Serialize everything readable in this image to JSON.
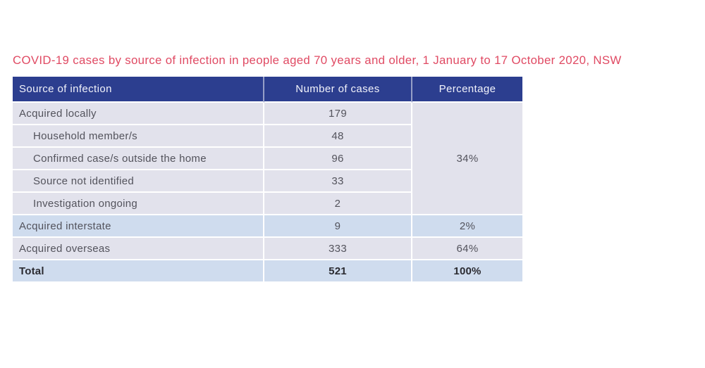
{
  "page": {
    "title": "COVID-19 cases by source of infection in people aged 70 years and older, 1 January to 17 October 2020, NSW"
  },
  "colors": {
    "title": "#e04a63",
    "header_bg": "#2c3e8f",
    "header_text": "#f2f3fb",
    "row_lavender": "#e2e2ec",
    "row_blue": "#cfdcee",
    "body_text": "#53535c",
    "total_text": "#2b2b31"
  },
  "table": {
    "header": {
      "source": "Source of infection",
      "cases": "Number of cases",
      "percentage": "Percentage"
    },
    "rows": [
      {
        "source": "Acquired locally",
        "indent": 0,
        "cases": "179",
        "percentage": "34%",
        "percentage_rowspan": 5,
        "shade": "lavender",
        "bold": false
      },
      {
        "source": "Household member/s",
        "indent": 1,
        "cases": "48",
        "percentage": null,
        "percentage_rowspan": 0,
        "shade": "lavender",
        "bold": false
      },
      {
        "source": "Confirmed case/s outside the home",
        "indent": 1,
        "cases": "96",
        "percentage": null,
        "percentage_rowspan": 0,
        "shade": "lavender",
        "bold": false
      },
      {
        "source": "Source not identified",
        "indent": 1,
        "cases": "33",
        "percentage": null,
        "percentage_rowspan": 0,
        "shade": "lavender",
        "bold": false
      },
      {
        "source": "Investigation ongoing",
        "indent": 1,
        "cases": "2",
        "percentage": null,
        "percentage_rowspan": 0,
        "shade": "lavender",
        "bold": false
      },
      {
        "source": "Acquired interstate",
        "indent": 0,
        "cases": "9",
        "percentage": "2%",
        "percentage_rowspan": 1,
        "shade": "blue",
        "bold": false
      },
      {
        "source": "Acquired overseas",
        "indent": 0,
        "cases": "333",
        "percentage": "64%",
        "percentage_rowspan": 1,
        "shade": "lavender",
        "bold": false
      },
      {
        "source": "Total",
        "indent": 0,
        "cases": "521",
        "percentage": "100%",
        "percentage_rowspan": 1,
        "shade": "blue",
        "bold": true
      }
    ]
  }
}
